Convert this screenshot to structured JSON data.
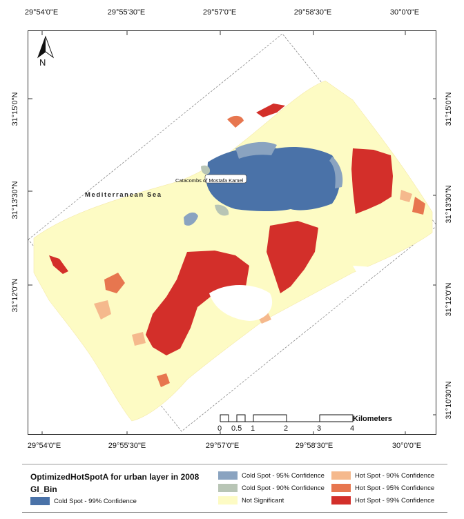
{
  "map": {
    "top_ticks": [
      "29°54'0\"E",
      "29°55'30\"E",
      "29°57'0\"E",
      "29°58'30\"E",
      "30°0'0\"E"
    ],
    "bottom_ticks": [
      "29°54'0\"E",
      "29°55'30\"E",
      "29°57'0\"E",
      "29°58'30\"E",
      "30°0'0\"E"
    ],
    "left_ticks": [
      "31°15'0\"N",
      "31°13'30\"N",
      "31°12'0\"N"
    ],
    "right_ticks": [
      "31°15'0\"N",
      "31°13'30\"N",
      "31°12'0\"N",
      "31°10'30\"N"
    ],
    "sea_label": "Mediterranean Sea",
    "poi_label": "Catacombs of Mostafa Kamel",
    "north_label": "N",
    "scale": {
      "labels": [
        "0",
        "0.5",
        "1",
        "2",
        "3",
        "4"
      ],
      "unit": "Kilometers"
    }
  },
  "legend": {
    "title": "OptimizedHotSpotA  for urban layer in 2008",
    "field": "GI_Bin",
    "items": [
      {
        "label": "Cold Spot - 99% Confidence",
        "color": "#4a72a8"
      },
      {
        "label": "Cold Spot - 95% Confidence",
        "color": "#8aa3c0"
      },
      {
        "label": "Cold Spot - 90% Confidence",
        "color": "#b8c5b5"
      },
      {
        "label": "Not Significant",
        "color": "#fdfbc4"
      },
      {
        "label": "Hot Spot - 90% Confidence",
        "color": "#f5b98d"
      },
      {
        "label": "Hot Spot - 95% Confidence",
        "color": "#e7764f"
      },
      {
        "label": "Hot Spot - 99% Confidence",
        "color": "#d32f2a"
      }
    ]
  }
}
